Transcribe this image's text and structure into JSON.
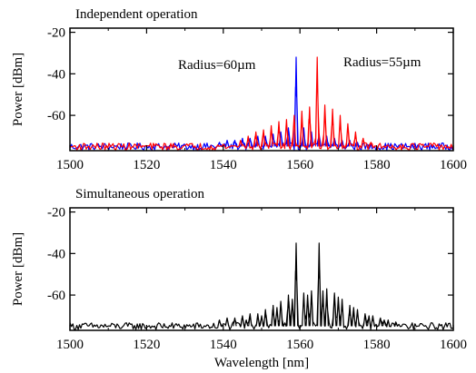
{
  "chart_data": [
    {
      "type": "line",
      "title": "Independent operation",
      "xlabel": "",
      "ylabel": "Power [dBm]",
      "xlim": [
        1500,
        1600
      ],
      "ylim": [
        -77,
        -18
      ],
      "x_ticks": [
        1500,
        1520,
        1540,
        1560,
        1580,
        1600
      ],
      "y_ticks": [
        -20,
        -40,
        -60
      ],
      "grid": false,
      "noise_floor": -75,
      "annotations": [
        {
          "text": "Radius=60µm",
          "near_series": 0
        },
        {
          "text": "Radius=55µm",
          "near_series": 1
        }
      ],
      "series": [
        {
          "color": "#0000ff",
          "peak_wavelength": 1559,
          "peaks": [
            [
              1539,
              -73
            ],
            [
              1541,
              -72
            ],
            [
              1543,
              -72
            ],
            [
              1545,
              -71
            ],
            [
              1547,
              -71
            ],
            [
              1549,
              -70
            ],
            [
              1551,
              -70
            ],
            [
              1553,
              -69
            ],
            [
              1555,
              -68
            ],
            [
              1557,
              -66
            ],
            [
              1559,
              -32
            ],
            [
              1561,
              -66
            ],
            [
              1563,
              -68
            ],
            [
              1565,
              -69
            ],
            [
              1567,
              -70
            ],
            [
              1569,
              -71
            ],
            [
              1571,
              -72
            ],
            [
              1573,
              -72
            ],
            [
              1575,
              -73
            ]
          ]
        },
        {
          "color": "#ff0000",
          "peak_wavelength": 1564.5,
          "peaks": [
            [
              1544.5,
              -72
            ],
            [
              1546.5,
              -70
            ],
            [
              1548.5,
              -68
            ],
            [
              1550.5,
              -67
            ],
            [
              1552.5,
              -65
            ],
            [
              1554.5,
              -63
            ],
            [
              1556.5,
              -62
            ],
            [
              1558.5,
              -60
            ],
            [
              1560.5,
              -58
            ],
            [
              1562.5,
              -56
            ],
            [
              1564.5,
              -32
            ],
            [
              1566.5,
              -55
            ],
            [
              1568.5,
              -57
            ],
            [
              1570.5,
              -60
            ],
            [
              1572.5,
              -64
            ],
            [
              1574.5,
              -68
            ],
            [
              1576.5,
              -71
            ],
            [
              1578.5,
              -73
            ]
          ]
        }
      ]
    },
    {
      "type": "line",
      "title": "Simultaneous operation",
      "xlabel": "Wavelength [nm]",
      "ylabel": "Power [dBm]",
      "xlim": [
        1500,
        1600
      ],
      "ylim": [
        -77,
        -18
      ],
      "x_ticks": [
        1500,
        1520,
        1540,
        1560,
        1580,
        1600
      ],
      "y_ticks": [
        -20,
        -40,
        -60
      ],
      "grid": false,
      "noise_floor": -75,
      "series": [
        {
          "color": "#000000",
          "peaks": [
            [
              1539,
              -72
            ],
            [
              1541,
              -71
            ],
            [
              1543,
              -71
            ],
            [
              1545,
              -70
            ],
            [
              1547,
              -69
            ],
            [
              1549,
              -69
            ],
            [
              1551,
              -67
            ],
            [
              1553,
              -65
            ],
            [
              1555,
              -63
            ],
            [
              1557,
              -60
            ],
            [
              1559,
              -35
            ],
            [
              1561,
              -59
            ],
            [
              1563,
              -58
            ],
            [
              1565,
              -35
            ],
            [
              1567,
              -57
            ],
            [
              1569,
              -59
            ],
            [
              1571,
              -62
            ],
            [
              1573,
              -65
            ],
            [
              1575,
              -67
            ],
            [
              1577,
              -69
            ],
            [
              1579,
              -70
            ],
            [
              1581,
              -71
            ],
            [
              1583,
              -72
            ],
            [
              1585,
              -73
            ],
            [
              1546,
              -72
            ],
            [
              1550,
              -70
            ],
            [
              1554,
              -66
            ],
            [
              1558,
              -62
            ],
            [
              1562,
              -60
            ],
            [
              1566,
              -58
            ],
            [
              1570,
              -61
            ],
            [
              1574,
              -66
            ],
            [
              1578,
              -70
            ],
            [
              1582,
              -72
            ]
          ]
        }
      ]
    }
  ]
}
